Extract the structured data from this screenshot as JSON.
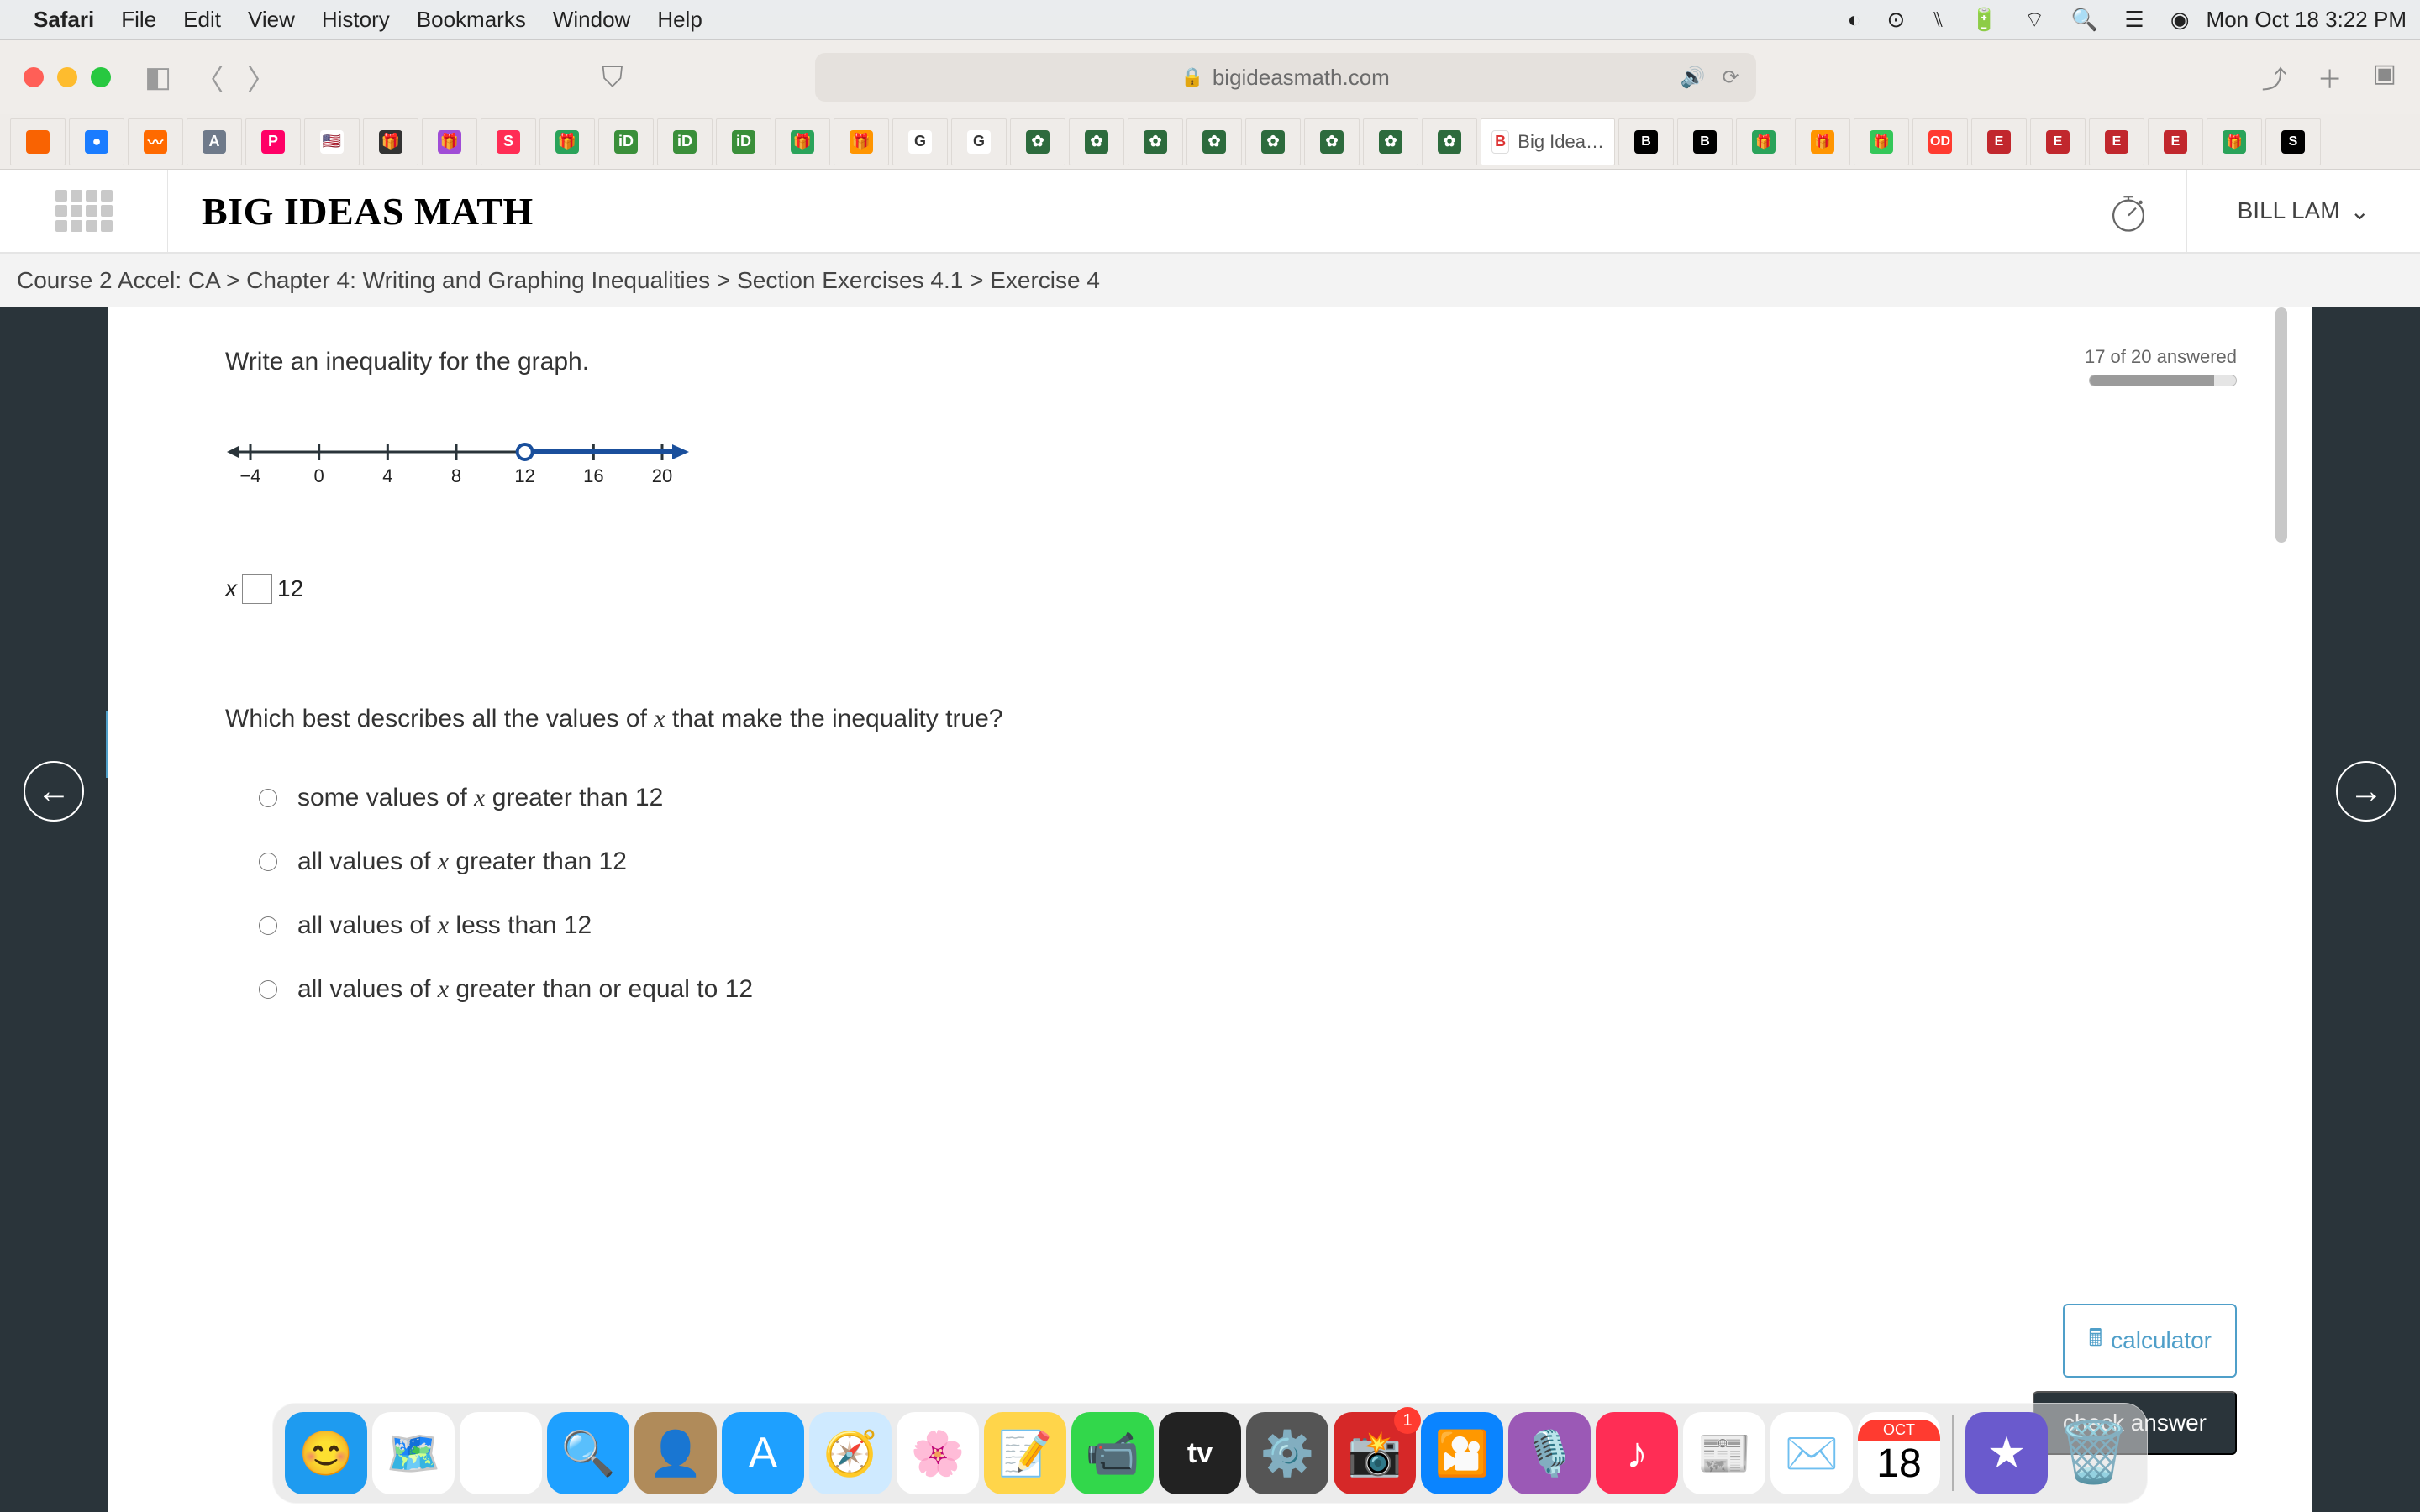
{
  "menubar": {
    "app": "Safari",
    "items": [
      "File",
      "Edit",
      "View",
      "History",
      "Bookmarks",
      "Window",
      "Help"
    ],
    "date": "Mon Oct 18  3:22 PM"
  },
  "browser": {
    "url_host": "bigideasmath.com",
    "active_tab_label": "Big Idea…",
    "favicons": [
      {
        "bg": "#f96302",
        "txt": "",
        "name": "homedepot"
      },
      {
        "bg": "#1a7cff",
        "txt": "●",
        "name": "blue-circle"
      },
      {
        "bg": "#ff6a00",
        "txt": "〰",
        "name": "orange-swirl"
      },
      {
        "bg": "#6f7a8a",
        "txt": "A",
        "name": "a-icon"
      },
      {
        "bg": "#ff0066",
        "txt": "P",
        "name": "pinterest"
      },
      {
        "bg": "#ffffff",
        "txt": "🇺🇸",
        "name": "flag"
      },
      {
        "bg": "#333",
        "txt": "🎁",
        "name": "gift1"
      },
      {
        "bg": "#a04cd6",
        "txt": "🎁",
        "name": "gift2"
      },
      {
        "bg": "#ff2d55",
        "txt": "S",
        "name": "s-red"
      },
      {
        "bg": "#2aa35a",
        "txt": "🎁",
        "name": "gift3"
      },
      {
        "bg": "#3a8f3a",
        "txt": "iD",
        "name": "id1"
      },
      {
        "bg": "#3a8f3a",
        "txt": "iD",
        "name": "id2"
      },
      {
        "bg": "#3a8f3a",
        "txt": "iD",
        "name": "id3"
      },
      {
        "bg": "#2aa35a",
        "txt": "🎁",
        "name": "gift4"
      },
      {
        "bg": "#ff9500",
        "txt": "🎁",
        "name": "gift5"
      },
      {
        "bg": "#fff",
        "txt": "G",
        "name": "google1"
      },
      {
        "bg": "#fff",
        "txt": "G",
        "name": "google2"
      },
      {
        "bg": "#2d6b3d",
        "txt": "✿",
        "name": "flower1"
      },
      {
        "bg": "#2d6b3d",
        "txt": "✿",
        "name": "flower2"
      },
      {
        "bg": "#2d6b3d",
        "txt": "✿",
        "name": "flower3"
      },
      {
        "bg": "#2d6b3d",
        "txt": "✿",
        "name": "flower4"
      },
      {
        "bg": "#2d6b3d",
        "txt": "✿",
        "name": "flower5"
      },
      {
        "bg": "#2d6b3d",
        "txt": "✿",
        "name": "flower6"
      },
      {
        "bg": "#2d6b3d",
        "txt": "✿",
        "name": "flower7"
      },
      {
        "bg": "#2d6b3d",
        "txt": "✿",
        "name": "flower8"
      }
    ],
    "right_tabs": [
      {
        "bg": "#000",
        "txt": "B",
        "name": "b1"
      },
      {
        "bg": "#000",
        "txt": "B",
        "name": "b2"
      },
      {
        "bg": "#2aa35a",
        "txt": "🎁",
        "name": "g1"
      },
      {
        "bg": "#ff9500",
        "txt": "🎁",
        "name": "g2"
      },
      {
        "bg": "#34c759",
        "txt": "🎁",
        "name": "g3"
      },
      {
        "bg": "#ff3b30",
        "txt": "OD",
        "name": "od"
      },
      {
        "bg": "#c1272d",
        "txt": "E",
        "name": "e1"
      },
      {
        "bg": "#c1272d",
        "txt": "E",
        "name": "e2"
      },
      {
        "bg": "#c1272d",
        "txt": "E",
        "name": "e3"
      },
      {
        "bg": "#c1272d",
        "txt": "E",
        "name": "e4"
      },
      {
        "bg": "#2aa35a",
        "txt": "🎁",
        "name": "g4"
      },
      {
        "bg": "#000",
        "txt": "S",
        "name": "s"
      }
    ]
  },
  "bim": {
    "logo": "BIG IDEAS MATH",
    "user": "BILL LAM",
    "breadcrumb": "Course 2 Accel: CA > Chapter 4: Writing and Graphing Inequalities > Section Exercises 4.1 > Exercise 4"
  },
  "exercise": {
    "number": "4",
    "progress_text": "17 of 20 answered",
    "progress_pct": 85,
    "prompt1": "Write an inequality for the graph.",
    "inequality_var": "x",
    "inequality_rhs": "12",
    "prompt2_pre": "Which best describes all the values of ",
    "prompt2_var": "x",
    "prompt2_post": " that make the inequality true?",
    "options": [
      {
        "pre": "some values of ",
        "var": "x",
        "post": " greater than 12"
      },
      {
        "pre": "all values of ",
        "var": "x",
        "post": " greater than 12"
      },
      {
        "pre": "all values of ",
        "var": "x",
        "post": " less than 12"
      },
      {
        "pre": "all values of ",
        "var": "x",
        "post": " greater than or equal to 12"
      }
    ],
    "numberline": {
      "ticks": [
        "−4",
        "0",
        "4",
        "8",
        "12",
        "16",
        "20"
      ],
      "open_circle_at_index": 4,
      "ray_to_right": true,
      "color_line": "#2a343a",
      "color_ray": "#1a4f9c"
    },
    "calculator_label": "calculator",
    "check_label": "check answer"
  },
  "dock": {
    "apps": [
      {
        "bg": "#1e9bf0",
        "glyph": "😊",
        "name": "finder"
      },
      {
        "bg": "#ffffff",
        "glyph": "🗺️",
        "name": "maps"
      },
      {
        "bg": "#ffffff",
        "glyph": "▦",
        "name": "launchpad"
      },
      {
        "bg": "#1ea0ff",
        "glyph": "🔍",
        "name": "quicktime"
      },
      {
        "bg": "#b08b5a",
        "glyph": "👤",
        "name": "contacts"
      },
      {
        "bg": "#1ea0ff",
        "glyph": "A",
        "name": "appstore"
      },
      {
        "bg": "#cfeaff",
        "glyph": "🧭",
        "name": "safari"
      },
      {
        "bg": "#ffffff",
        "glyph": "🌸",
        "name": "photos"
      },
      {
        "bg": "#ffd54a",
        "glyph": "📝",
        "name": "notes"
      },
      {
        "bg": "#32d74b",
        "glyph": "📹",
        "name": "facetime"
      },
      {
        "bg": "#222",
        "glyph": "tv",
        "name": "tv"
      },
      {
        "bg": "#555",
        "glyph": "⚙️",
        "name": "settings"
      },
      {
        "bg": "#d62828",
        "glyph": "📸",
        "name": "photobooth",
        "badge": "1"
      },
      {
        "bg": "#0a84ff",
        "glyph": "🎦",
        "name": "zoom"
      },
      {
        "bg": "#9b59b6",
        "glyph": "🎙️",
        "name": "podcasts"
      },
      {
        "bg": "#ff2d55",
        "glyph": "♪",
        "name": "music"
      },
      {
        "bg": "#ffffff",
        "glyph": "📰",
        "name": "news"
      },
      {
        "bg": "#fff",
        "glyph": "✉️",
        "name": "mail"
      }
    ],
    "calendar": {
      "month": "OCT",
      "day": "18"
    },
    "right_apps": [
      {
        "bg": "#6a5acd",
        "glyph": "★",
        "name": "imovie"
      },
      {
        "bg": "#e0e0e0",
        "glyph": "🗑️",
        "name": "trash"
      }
    ]
  }
}
